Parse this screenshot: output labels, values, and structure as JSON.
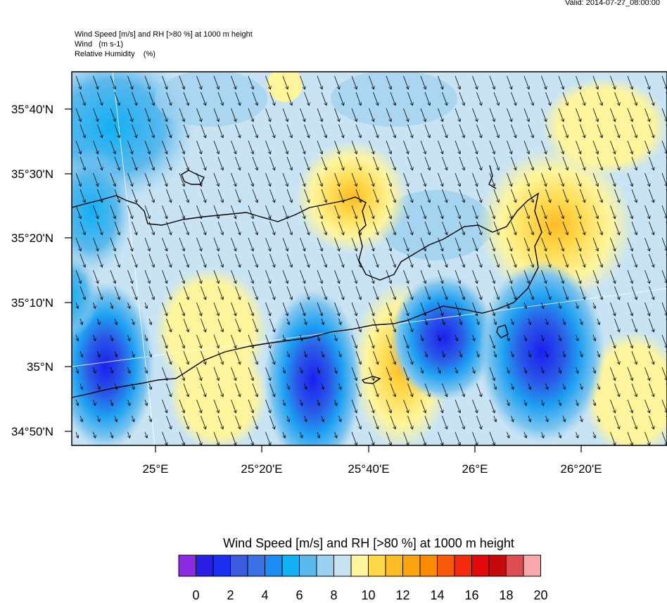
{
  "valid_time": "Valid: 2014-07-27_08:00:00",
  "header": {
    "line1": "Wind Speed [m/s] and RH [>80 %] at 1000 m height",
    "line2": "Wind   (m s-1)",
    "line3": "Relative Humidity    (%)"
  },
  "map": {
    "lat_labels": [
      "35°40'N",
      "35°30'N",
      "35°20'N",
      "35°10'N",
      "35°N",
      "34°50'N"
    ],
    "lon_labels": [
      "25°E",
      "25°20'E",
      "25°40'E",
      "26°E",
      "26°20'E"
    ]
  },
  "colorbar": {
    "title": "Wind Speed [m/s] and RH [>80 %] at 1000 m height",
    "labels": [
      "0",
      "2",
      "4",
      "6",
      "8",
      "10",
      "12",
      "14",
      "16",
      "18",
      "20"
    ],
    "colors": [
      "#8b2be2",
      "#2a1fe8",
      "#1a2ff0",
      "#3a5be0",
      "#3a73e8",
      "#1e8cf5",
      "#12b0f5",
      "#5ab8ec",
      "#9cd0f0",
      "#c8e4f4",
      "#fff59c",
      "#ffd84a",
      "#fdbb25",
      "#fca510",
      "#fb8c00",
      "#f95a0a",
      "#f42a0a",
      "#e4080a",
      "#c40a0a",
      "#dd4e52",
      "#f8a8a8"
    ]
  }
}
